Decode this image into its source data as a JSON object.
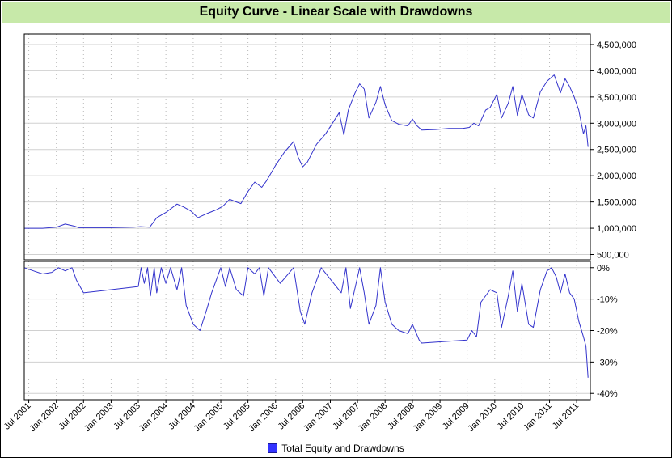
{
  "chart_data": {
    "type": "line",
    "title": "Equity Curve - Linear Scale with Drawdowns",
    "legend": {
      "placement": "bottom-center",
      "entries": [
        "Total Equity and Drawdowns"
      ]
    },
    "colors": {
      "series": "#3333cc",
      "title_background": "#c7e9a9",
      "grid": "#c0c0c0"
    },
    "grid": true,
    "x_axis": {
      "type": "date",
      "range": [
        "2001-06-01",
        "2011-09-30"
      ],
      "tick_labels": [
        "Jul 2001",
        "Jan 2002",
        "Jul 2002",
        "Jan 2003",
        "Jul 2003",
        "Jan 2004",
        "Jul 2004",
        "Jan 2005",
        "Jul 2005",
        "Jan 2006",
        "Jul 2006",
        "Jan 2007",
        "Jul 2007",
        "Jan 2008",
        "Jul 2008",
        "Jan 2009",
        "Jul 2009",
        "Jan 2010",
        "Jul 2010",
        "Jan 2011",
        "Jul 2011"
      ],
      "tick_dates": [
        "2001-07-01",
        "2002-01-01",
        "2002-07-01",
        "2003-01-01",
        "2003-07-01",
        "2004-01-01",
        "2004-07-01",
        "2005-01-01",
        "2005-07-01",
        "2006-01-01",
        "2006-07-01",
        "2007-01-01",
        "2007-07-01",
        "2008-01-01",
        "2008-07-01",
        "2009-01-01",
        "2009-07-01",
        "2010-01-01",
        "2010-07-01",
        "2011-01-01",
        "2011-07-01"
      ]
    },
    "panels": [
      {
        "name": "equity",
        "ylim": [
          400000,
          4700000
        ],
        "y_tick_values": [
          500000,
          1000000,
          1500000,
          2000000,
          2500000,
          3000000,
          3500000,
          4000000,
          4500000
        ],
        "y_tick_labels": [
          "500,000",
          "1,000,000",
          "1,500,000",
          "2,000,000",
          "2,500,000",
          "3,000,000",
          "3,500,000",
          "4,000,000",
          "4,500,000"
        ],
        "series": [
          {
            "name": "Total Equity and Drawdowns",
            "points": [
              [
                "2001-06-01",
                1000000
              ],
              [
                "2001-10-01",
                1000000
              ],
              [
                "2002-01-01",
                1020000
              ],
              [
                "2002-03-01",
                1080000
              ],
              [
                "2002-05-01",
                1040000
              ],
              [
                "2002-06-01",
                1010000
              ],
              [
                "2003-01-01",
                1010000
              ],
              [
                "2003-06-01",
                1020000
              ],
              [
                "2003-07-15",
                1030000
              ],
              [
                "2003-09-15",
                1020000
              ],
              [
                "2003-11-01",
                1200000
              ],
              [
                "2004-01-01",
                1300000
              ],
              [
                "2004-03-15",
                1460000
              ],
              [
                "2004-05-01",
                1400000
              ],
              [
                "2004-06-15",
                1330000
              ],
              [
                "2004-08-01",
                1200000
              ],
              [
                "2004-10-01",
                1280000
              ],
              [
                "2004-12-01",
                1350000
              ],
              [
                "2005-01-15",
                1420000
              ],
              [
                "2005-03-01",
                1550000
              ],
              [
                "2005-04-15",
                1500000
              ],
              [
                "2005-05-15",
                1470000
              ],
              [
                "2005-07-01",
                1700000
              ],
              [
                "2005-08-15",
                1880000
              ],
              [
                "2005-10-01",
                1780000
              ],
              [
                "2005-11-01",
                1900000
              ],
              [
                "2006-01-01",
                2200000
              ],
              [
                "2006-03-01",
                2450000
              ],
              [
                "2006-05-01",
                2650000
              ],
              [
                "2006-06-01",
                2350000
              ],
              [
                "2006-07-01",
                2170000
              ],
              [
                "2006-08-01",
                2260000
              ],
              [
                "2006-10-01",
                2600000
              ],
              [
                "2006-12-01",
                2800000
              ],
              [
                "2007-01-15",
                3000000
              ],
              [
                "2007-03-01",
                3200000
              ],
              [
                "2007-04-01",
                2780000
              ],
              [
                "2007-05-01",
                3250000
              ],
              [
                "2007-06-15",
                3580000
              ],
              [
                "2007-07-15",
                3750000
              ],
              [
                "2007-08-15",
                3650000
              ],
              [
                "2007-09-15",
                3100000
              ],
              [
                "2007-11-01",
                3400000
              ],
              [
                "2007-12-01",
                3700000
              ],
              [
                "2008-01-01",
                3350000
              ],
              [
                "2008-02-15",
                3050000
              ],
              [
                "2008-04-01",
                2980000
              ],
              [
                "2008-06-01",
                2950000
              ],
              [
                "2008-07-01",
                3080000
              ],
              [
                "2008-08-01",
                2950000
              ],
              [
                "2008-09-01",
                2870000
              ],
              [
                "2008-12-01",
                2880000
              ],
              [
                "2009-03-01",
                2900000
              ],
              [
                "2009-06-01",
                2900000
              ],
              [
                "2009-07-15",
                2920000
              ],
              [
                "2009-08-15",
                3000000
              ],
              [
                "2009-09-15",
                2950000
              ],
              [
                "2009-11-01",
                3250000
              ],
              [
                "2009-12-01",
                3300000
              ],
              [
                "2010-01-15",
                3550000
              ],
              [
                "2010-02-15",
                3100000
              ],
              [
                "2010-04-01",
                3380000
              ],
              [
                "2010-05-01",
                3700000
              ],
              [
                "2010-06-01",
                3150000
              ],
              [
                "2010-07-01",
                3550000
              ],
              [
                "2010-08-15",
                3160000
              ],
              [
                "2010-09-15",
                3100000
              ],
              [
                "2010-11-01",
                3600000
              ],
              [
                "2010-12-15",
                3800000
              ],
              [
                "2011-02-01",
                3920000
              ],
              [
                "2011-03-15",
                3580000
              ],
              [
                "2011-04-15",
                3850000
              ],
              [
                "2011-05-15",
                3700000
              ],
              [
                "2011-06-15",
                3500000
              ],
              [
                "2011-07-15",
                3250000
              ],
              [
                "2011-08-15",
                2800000
              ],
              [
                "2011-09-01",
                2950000
              ],
              [
                "2011-09-15",
                2550000
              ]
            ]
          }
        ]
      },
      {
        "name": "drawdowns",
        "ylim": [
          -42,
          2
        ],
        "y_tick_values": [
          0,
          -10,
          -20,
          -30,
          -40
        ],
        "y_tick_labels": [
          "0%",
          "-10%",
          "-20%",
          "-30%",
          "-40%"
        ],
        "series": [
          {
            "name": "Total Equity and Drawdowns",
            "points": [
              [
                "2001-06-01",
                0
              ],
              [
                "2001-08-01",
                -1
              ],
              [
                "2001-10-01",
                -2
              ],
              [
                "2001-12-01",
                -1.5
              ],
              [
                "2002-01-15",
                0
              ],
              [
                "2002-03-01",
                -1
              ],
              [
                "2002-04-15",
                0
              ],
              [
                "2002-05-15",
                -4
              ],
              [
                "2002-07-01",
                -8
              ],
              [
                "2003-01-01",
                -7
              ],
              [
                "2003-07-01",
                -6
              ],
              [
                "2003-07-20",
                0
              ],
              [
                "2003-08-10",
                -5
              ],
              [
                "2003-09-01",
                0
              ],
              [
                "2003-09-20",
                -9
              ],
              [
                "2003-10-15",
                0
              ],
              [
                "2003-11-01",
                -8
              ],
              [
                "2003-12-01",
                0
              ],
              [
                "2004-01-01",
                -5
              ],
              [
                "2004-02-01",
                0
              ],
              [
                "2004-03-15",
                -7
              ],
              [
                "2004-04-15",
                0
              ],
              [
                "2004-05-15",
                -12
              ],
              [
                "2004-07-01",
                -18
              ],
              [
                "2004-08-15",
                -20
              ],
              [
                "2004-10-01",
                -13
              ],
              [
                "2004-11-01",
                -8
              ],
              [
                "2005-01-01",
                0
              ],
              [
                "2005-02-01",
                -6
              ],
              [
                "2005-03-01",
                0
              ],
              [
                "2005-04-15",
                -7
              ],
              [
                "2005-06-01",
                -9
              ],
              [
                "2005-07-01",
                0
              ],
              [
                "2005-08-15",
                -2
              ],
              [
                "2005-09-15",
                0
              ],
              [
                "2005-10-15",
                -9
              ],
              [
                "2005-11-15",
                0
              ],
              [
                "2006-02-01",
                -5
              ],
              [
                "2006-05-01",
                0
              ],
              [
                "2006-06-15",
                -14
              ],
              [
                "2006-07-15",
                -18
              ],
              [
                "2006-09-01",
                -8
              ],
              [
                "2006-11-01",
                0
              ],
              [
                "2007-03-15",
                -8
              ],
              [
                "2007-04-15",
                0
              ],
              [
                "2007-05-15",
                -13
              ],
              [
                "2007-07-15",
                0
              ],
              [
                "2007-08-15",
                -8
              ],
              [
                "2007-09-15",
                -18
              ],
              [
                "2007-11-01",
                -12
              ],
              [
                "2007-12-01",
                0
              ],
              [
                "2008-01-01",
                -11
              ],
              [
                "2008-02-15",
                -18
              ],
              [
                "2008-04-01",
                -20
              ],
              [
                "2008-06-01",
                -21
              ],
              [
                "2008-07-01",
                -18
              ],
              [
                "2008-08-15",
                -23
              ],
              [
                "2008-09-01",
                -24
              ],
              [
                "2009-07-01",
                -23
              ],
              [
                "2009-08-01",
                -20
              ],
              [
                "2009-09-01",
                -22
              ],
              [
                "2009-10-01",
                -11
              ],
              [
                "2009-12-01",
                -7
              ],
              [
                "2010-01-15",
                -8
              ],
              [
                "2010-02-15",
                -19
              ],
              [
                "2010-04-01",
                -9
              ],
              [
                "2010-05-01",
                -1
              ],
              [
                "2010-06-01",
                -14
              ],
              [
                "2010-07-01",
                -5
              ],
              [
                "2010-08-15",
                -18
              ],
              [
                "2010-09-15",
                -19
              ],
              [
                "2010-11-01",
                -7
              ],
              [
                "2010-12-15",
                -1
              ],
              [
                "2011-01-15",
                0
              ],
              [
                "2011-02-15",
                -3
              ],
              [
                "2011-03-15",
                -8
              ],
              [
                "2011-04-15",
                -2
              ],
              [
                "2011-05-15",
                -8
              ],
              [
                "2011-06-15",
                -10
              ],
              [
                "2011-07-15",
                -17
              ],
              [
                "2011-08-15",
                -22
              ],
              [
                "2011-09-01",
                -25
              ],
              [
                "2011-09-15",
                -35
              ]
            ]
          }
        ]
      }
    ]
  }
}
